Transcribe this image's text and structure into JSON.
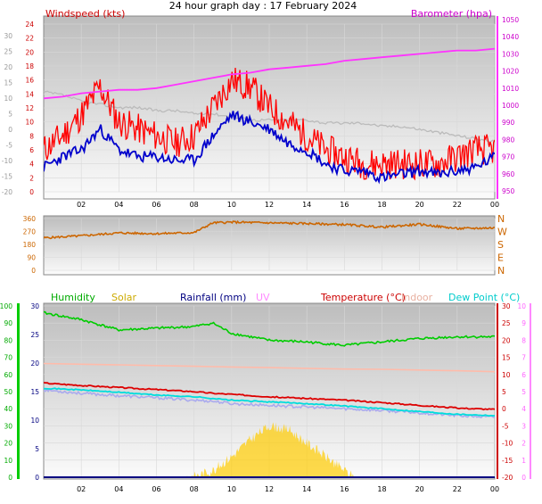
{
  "title": "24 hour graph day : 17 February 2024",
  "colors": {
    "wind": "#ff0000",
    "wind_avg": "#0000cc",
    "barometer": "#ff33ff",
    "chill": "#bbbbbb",
    "direction": "#cc6600",
    "humidity": "#00cc00",
    "solar": "#ffcc00",
    "rainfall": "#000080",
    "uv": "#ff88ff",
    "temperature": "#dd0000",
    "indoor": "#ffbbaa",
    "dew_point": "#00dddd",
    "apparent": "#aaaaee"
  },
  "chart_data": [
    {
      "type": "line",
      "name": "wind-barometer",
      "title": "24 hour graph day : 17 February 2024",
      "labels": {
        "wind": "Windspeed (kts)",
        "barometer": "Barometer (hpa)"
      },
      "x_ticks": [
        "02",
        "04",
        "06",
        "08",
        "10",
        "12",
        "14",
        "16",
        "18",
        "20",
        "22",
        "00"
      ],
      "y_wind_ticks": [
        "0",
        "2",
        "4",
        "6",
        "8",
        "10",
        "12",
        "14",
        "16",
        "18",
        "20",
        "22",
        "24"
      ],
      "y_outer_ticks": [
        "-20",
        "-15",
        "-10",
        "-5",
        "0",
        "5",
        "10",
        "15",
        "20",
        "25",
        "30"
      ],
      "y_baro_ticks": [
        "950",
        "960",
        "970",
        "980",
        "990",
        "1000",
        "1010",
        "1020",
        "1030",
        "1040",
        "1050"
      ],
      "hours": [
        0,
        1,
        2,
        3,
        4,
        5,
        6,
        7,
        8,
        9,
        10,
        11,
        12,
        13,
        14,
        15,
        16,
        17,
        18,
        19,
        20,
        21,
        22,
        23,
        24
      ],
      "gust": [
        6,
        8,
        11,
        15,
        10,
        9,
        8,
        7,
        8,
        12,
        16,
        15,
        12,
        10,
        8,
        6,
        5,
        4,
        4,
        4,
        4,
        4,
        5,
        6,
        6
      ],
      "avg_wind": [
        3.5,
        5,
        6,
        9,
        6,
        5,
        5,
        4.5,
        4.5,
        8,
        11,
        10,
        9,
        7,
        6,
        4,
        3,
        3,
        2,
        2.5,
        3,
        2.5,
        3,
        3.5,
        5
      ],
      "pressure": [
        1004,
        1005,
        1007,
        1008,
        1009,
        1009,
        1010,
        1012,
        1014,
        1016,
        1018,
        1019,
        1021,
        1022,
        1023,
        1024,
        1026,
        1027,
        1028,
        1029,
        1030,
        1031,
        1032,
        1032,
        1033
      ],
      "chill": [
        12,
        11,
        9,
        8,
        7,
        7,
        6,
        6,
        5,
        5,
        4,
        3,
        3,
        3,
        3,
        2,
        2,
        2,
        1,
        1,
        0,
        -1,
        -2,
        -3,
        -4
      ]
    },
    {
      "type": "line",
      "name": "wind-direction",
      "y_ticks": [
        "360",
        "270",
        "180",
        "90",
        "0"
      ],
      "compass": [
        "N",
        "W",
        "S",
        "E",
        "N"
      ],
      "hours": [
        0,
        2,
        4,
        6,
        8,
        9,
        10,
        12,
        14,
        16,
        18,
        20,
        22,
        24
      ],
      "direction": [
        225,
        240,
        260,
        255,
        262,
        330,
        335,
        330,
        325,
        318,
        300,
        320,
        290,
        295
      ]
    },
    {
      "type": "line",
      "name": "temperature-humidity",
      "labels": {
        "humidity": "Humidity",
        "solar": "Solar",
        "rainfall": "Rainfall (mm)",
        "uv": "UV",
        "temperature": "Temperature (°C)",
        "indoor": "Indoor",
        "dew_point": "Dew Point (°C)"
      },
      "y_humidity_ticks": [
        "0",
        "10",
        "20",
        "30",
        "40",
        "50",
        "60",
        "70",
        "80",
        "90",
        "100"
      ],
      "y_rain_ticks": [
        "0",
        "5",
        "10",
        "15",
        "20",
        "25",
        "30"
      ],
      "y_temp_ticks": [
        "-20",
        "-15",
        "-10",
        "-5",
        "0",
        "5",
        "10",
        "15",
        "20",
        "25",
        "30"
      ],
      "y_uv_ticks": [
        "0",
        "1",
        "2",
        "3",
        "4",
        "5",
        "6",
        "7",
        "8",
        "9",
        "10"
      ],
      "hours": [
        0,
        2,
        4,
        6,
        8,
        9,
        10,
        12,
        14,
        16,
        18,
        20,
        22,
        24
      ],
      "humidity": [
        96,
        92,
        86,
        87,
        88,
        90,
        84,
        80,
        79,
        77,
        79,
        81,
        82,
        82
      ],
      "temperature": [
        7.5,
        6.8,
        6.2,
        5.6,
        5.0,
        4.5,
        4.2,
        3.5,
        3.0,
        2.5,
        1.8,
        1.0,
        0.2,
        -0.2
      ],
      "dew_point": [
        6.0,
        5.5,
        4.8,
        4.0,
        3.5,
        3.0,
        2.5,
        2.0,
        1.5,
        0.8,
        0,
        -0.8,
        -1.6,
        -2.0
      ],
      "apparent": [
        5.5,
        4.5,
        3.8,
        3.2,
        2.5,
        2.2,
        1.5,
        1.0,
        0.5,
        0,
        -0.5,
        -1.2,
        -2.0,
        -2.5
      ],
      "indoor": [
        13.2,
        13.0,
        12.8,
        12.6,
        12.4,
        12.3,
        12.2,
        12.0,
        11.8,
        11.6,
        11.5,
        11.3,
        11.1,
        10.8
      ],
      "solar_hours": [
        7.5,
        8,
        9,
        10,
        11,
        12,
        13,
        14,
        15,
        16,
        16.5
      ],
      "solar": [
        0,
        5,
        40,
        120,
        220,
        300,
        280,
        200,
        120,
        40,
        0
      ]
    }
  ]
}
